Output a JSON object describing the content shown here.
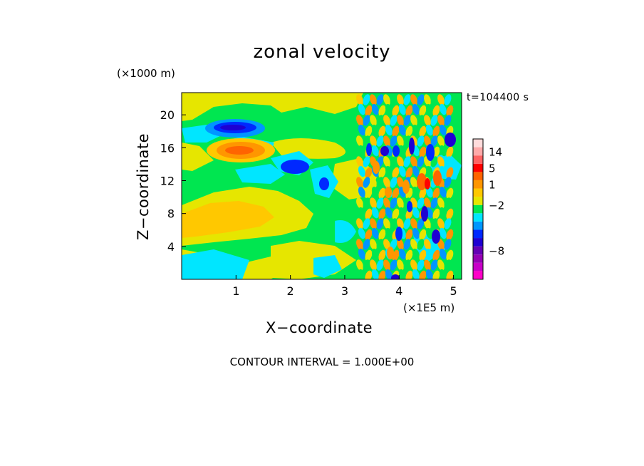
{
  "chart_data": {
    "type": "heatmap",
    "title": "zonal velocity",
    "xlabel": "X−coordinate",
    "ylabel": "Z−coordinate",
    "x_units": "(×1E5 m)",
    "y_units": "(×1000 m)",
    "time_label": "t=104400 s",
    "footer": "CONTOUR INTERVAL = 1.000E+00",
    "xlim": [
      0,
      5.15
    ],
    "ylim": [
      0,
      22.7
    ],
    "x_ticks": [
      "1",
      "2",
      "3",
      "4",
      "5"
    ],
    "y_ticks": [
      "4",
      "8",
      "12",
      "16",
      "20"
    ],
    "colorbar": {
      "levels": [
        {
          "color": "#ff00c8"
        },
        {
          "color": "#c800c8"
        },
        {
          "color": "#9600b4"
        },
        {
          "color": "#6400b4"
        },
        {
          "color": "#1e00d2"
        },
        {
          "color": "#0028ff"
        },
        {
          "color": "#0096ff"
        },
        {
          "color": "#00e6ff"
        },
        {
          "color": "#00e650"
        },
        {
          "color": "#e6e600"
        },
        {
          "color": "#ffc800"
        },
        {
          "color": "#ff9600"
        },
        {
          "color": "#ff6400"
        },
        {
          "color": "#ff0000"
        },
        {
          "color": "#ff6464"
        },
        {
          "color": "#ffaaaa"
        },
        {
          "color": "#ffdcdc"
        }
      ],
      "tick_labels": [
        "14",
        "5",
        "1",
        "−2",
        "−8"
      ]
    },
    "features": [
      {
        "x": 1.1,
        "z": 17.9,
        "value": -6,
        "note": "negative jet near top"
      },
      {
        "x": 1.2,
        "z": 15.9,
        "value": 6,
        "note": "positive jet"
      },
      {
        "x": 2.1,
        "z": 13.8,
        "value": -5
      },
      {
        "x": 2.65,
        "z": 11.8,
        "value": -4
      },
      {
        "x": 4.3,
        "z": 12.0,
        "value": 6
      },
      {
        "x": 4.8,
        "z": 17.0,
        "value": -5
      }
    ]
  }
}
